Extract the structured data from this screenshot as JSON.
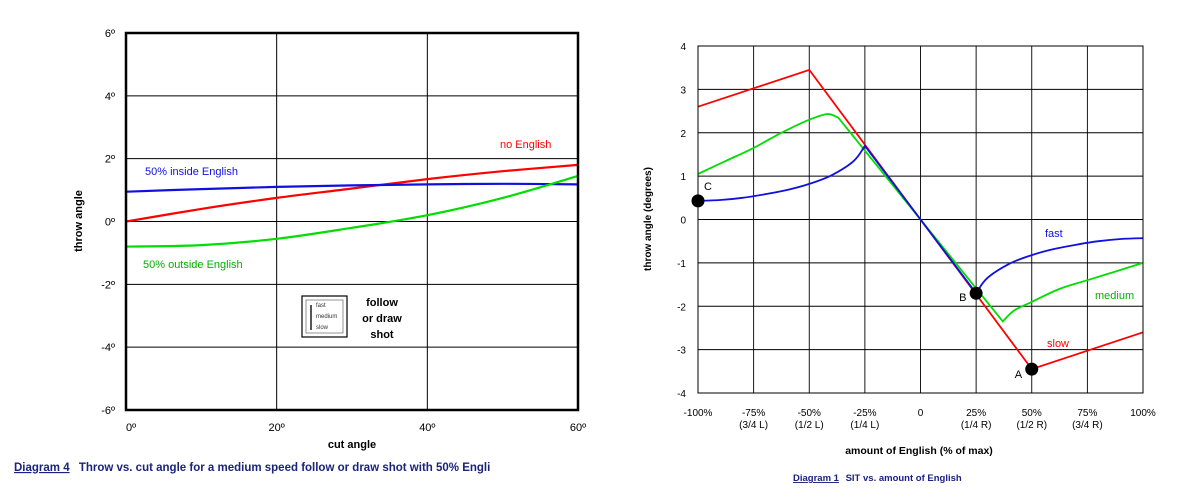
{
  "chart_data": [
    {
      "type": "line",
      "title": "",
      "xlabel": "cut angle",
      "ylabel": "throw angle",
      "xlim": [
        0,
        60
      ],
      "ylim": [
        -6,
        6
      ],
      "x_ticks": [
        "0º",
        "20º",
        "40º",
        "60º"
      ],
      "y_ticks": [
        "-6º",
        "-4º",
        "-2º",
        "0º",
        "2º",
        "4º",
        "6º"
      ],
      "grid": true,
      "series": [
        {
          "name": "no English",
          "color": "#ff0000",
          "x": [
            0,
            10,
            20,
            30,
            40,
            50,
            60
          ],
          "y": [
            0,
            0.4,
            0.75,
            1.05,
            1.35,
            1.6,
            1.8
          ]
        },
        {
          "name": "50% inside English",
          "color": "#1010e0",
          "x": [
            0,
            10,
            20,
            30,
            40,
            50,
            60
          ],
          "y": [
            0.95,
            1.03,
            1.1,
            1.15,
            1.18,
            1.2,
            1.18
          ]
        },
        {
          "name": "50% outside English",
          "color": "#00dd00",
          "x": [
            0,
            10,
            20,
            30,
            40,
            50,
            60
          ],
          "y": [
            -0.8,
            -0.75,
            -0.55,
            -0.2,
            0.2,
            0.75,
            1.45
          ]
        }
      ],
      "legend_box": {
        "speeds": [
          "fast",
          "medium",
          "slow"
        ],
        "label_lines": [
          "follow",
          "or draw",
          "shot"
        ]
      },
      "caption": {
        "number": "Diagram 4",
        "text": "Throw vs. cut angle for a medium speed follow or draw shot with 50% Engli"
      }
    },
    {
      "type": "line",
      "title": "",
      "xlabel": "amount of English (% of max)",
      "ylabel": "throw angle (degrees)",
      "xlim": [
        -100,
        100
      ],
      "ylim": [
        -4,
        4
      ],
      "x_ticks": [
        {
          "value": -100,
          "line1": "-100%",
          "line2": ""
        },
        {
          "value": -75,
          "line1": "-75%",
          "line2": "(3/4 L)"
        },
        {
          "value": -50,
          "line1": "-50%",
          "line2": "(1/2 L)"
        },
        {
          "value": -25,
          "line1": "-25%",
          "line2": "(1/4 L)"
        },
        {
          "value": 0,
          "line1": "0",
          "line2": ""
        },
        {
          "value": 25,
          "line1": "25%",
          "line2": "(1/4 R)"
        },
        {
          "value": 50,
          "line1": "50%",
          "line2": "(1/2 R)"
        },
        {
          "value": 75,
          "line1": "75%",
          "line2": "(3/4 R)"
        },
        {
          "value": 100,
          "line1": "100%",
          "line2": ""
        }
      ],
      "y_ticks": [
        "-4",
        "-3",
        "-2",
        "-1",
        "0",
        "1",
        "2",
        "3",
        "4"
      ],
      "grid": true,
      "series": [
        {
          "name": "slow",
          "color": "#ff0000",
          "x": [
            -100,
            -50,
            0,
            50,
            100
          ],
          "y": [
            2.6,
            3.45,
            0,
            -3.45,
            -2.6
          ]
        },
        {
          "name": "medium",
          "color": "#00dd00",
          "x": [
            -100,
            -87.5,
            -75,
            -62.5,
            -50,
            -42,
            -37,
            0,
            37,
            42,
            50,
            62.5,
            75,
            87.5,
            100
          ],
          "y": [
            1.05,
            1.35,
            1.65,
            2.0,
            2.3,
            2.43,
            2.35,
            0,
            -2.35,
            -2.1,
            -1.9,
            -1.6,
            -1.4,
            -1.2,
            -1.0
          ]
        },
        {
          "name": "fast",
          "color": "#1010e0",
          "x": [
            -100,
            -90,
            -80,
            -70,
            -60,
            -50,
            -40,
            -30,
            -25,
            0,
            25,
            30,
            40,
            50,
            60,
            70,
            80,
            90,
            100
          ],
          "y": [
            0.43,
            0.45,
            0.5,
            0.58,
            0.68,
            0.82,
            1.02,
            1.35,
            1.7,
            0,
            -1.7,
            -1.35,
            -1.02,
            -0.82,
            -0.68,
            -0.58,
            -0.5,
            -0.45,
            -0.43
          ]
        }
      ],
      "points": [
        {
          "label": "C",
          "x": -100,
          "y": 0.43
        },
        {
          "label": "B",
          "x": 25,
          "y": -1.7
        },
        {
          "label": "A",
          "x": 50,
          "y": -3.45
        }
      ],
      "caption": {
        "number": "Diagram 1",
        "text": "SIT vs. amount of English"
      }
    }
  ]
}
